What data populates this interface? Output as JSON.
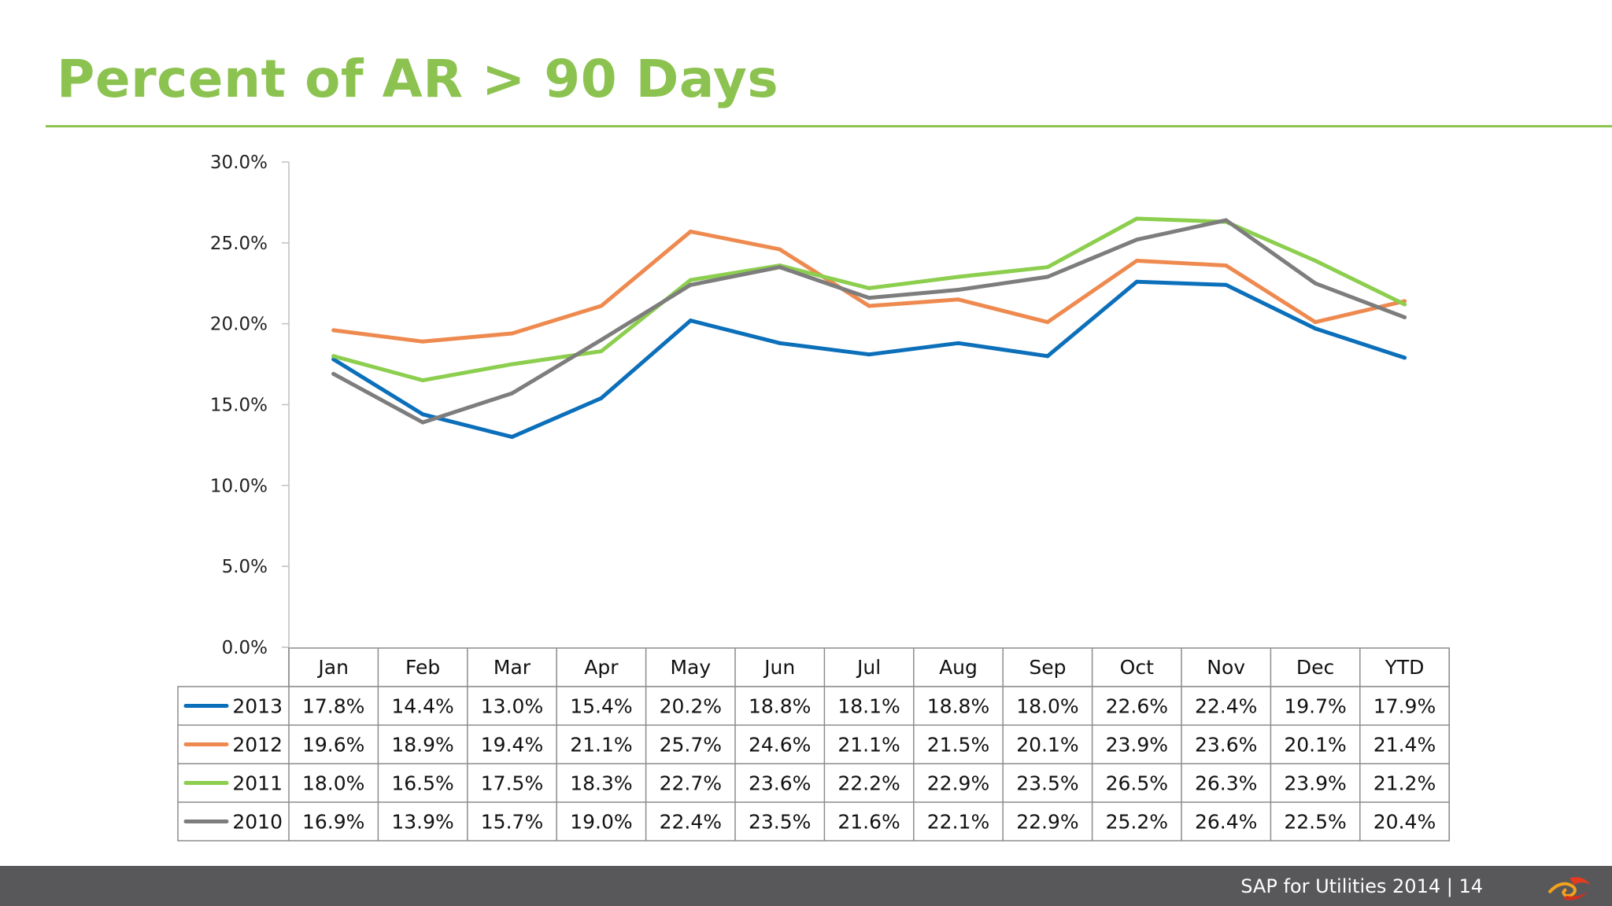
{
  "slide": {
    "title": "Percent of AR > 90 Days",
    "footer_text": "SAP for Utilities 2014 |  14"
  },
  "colors": {
    "title": "#8cc350",
    "footer_bg": "#58585a"
  },
  "chart_data": {
    "type": "line",
    "categories": [
      "Jan",
      "Feb",
      "Mar",
      "Apr",
      "May",
      "Jun",
      "Jul",
      "Aug",
      "Sep",
      "Oct",
      "Nov",
      "Dec",
      "YTD"
    ],
    "y_ticks": [
      "0.0%",
      "5.0%",
      "10.0%",
      "15.0%",
      "20.0%",
      "25.0%",
      "30.0%"
    ],
    "ylim": [
      0,
      30
    ],
    "legend_placement": "data-table",
    "series": [
      {
        "name": "2013",
        "color": "#0b6fba",
        "values": [
          17.8,
          14.4,
          13.0,
          15.4,
          20.2,
          18.8,
          18.1,
          18.8,
          18.0,
          22.6,
          22.4,
          19.7,
          17.9
        ],
        "labels": [
          "17.8%",
          "14.4%",
          "13.0%",
          "15.4%",
          "20.2%",
          "18.8%",
          "18.1%",
          "18.8%",
          "18.0%",
          "22.6%",
          "22.4%",
          "19.7%",
          "17.9%"
        ]
      },
      {
        "name": "2012",
        "color": "#ee8a4f",
        "values": [
          19.6,
          18.9,
          19.4,
          21.1,
          25.7,
          24.6,
          21.1,
          21.5,
          20.1,
          23.9,
          23.6,
          20.1,
          21.4
        ],
        "labels": [
          "19.6%",
          "18.9%",
          "19.4%",
          "21.1%",
          "25.7%",
          "24.6%",
          "21.1%",
          "21.5%",
          "20.1%",
          "23.9%",
          "23.6%",
          "20.1%",
          "21.4%"
        ]
      },
      {
        "name": "2011",
        "color": "#8cce4e",
        "values": [
          18.0,
          16.5,
          17.5,
          18.3,
          22.7,
          23.6,
          22.2,
          22.9,
          23.5,
          26.5,
          26.3,
          23.9,
          21.2
        ],
        "labels": [
          "18.0%",
          "16.5%",
          "17.5%",
          "18.3%",
          "22.7%",
          "23.6%",
          "22.2%",
          "22.9%",
          "23.5%",
          "26.5%",
          "26.3%",
          "23.9%",
          "21.2%"
        ]
      },
      {
        "name": "2010",
        "color": "#7d7d7d",
        "values": [
          16.9,
          13.9,
          15.7,
          19.0,
          22.4,
          23.5,
          21.6,
          22.1,
          22.9,
          25.2,
          26.4,
          22.5,
          20.4
        ],
        "labels": [
          "16.9%",
          "13.9%",
          "15.7%",
          "19.0%",
          "22.4%",
          "23.5%",
          "21.6%",
          "22.1%",
          "22.9%",
          "25.2%",
          "26.4%",
          "22.5%",
          "20.4%"
        ]
      }
    ]
  }
}
